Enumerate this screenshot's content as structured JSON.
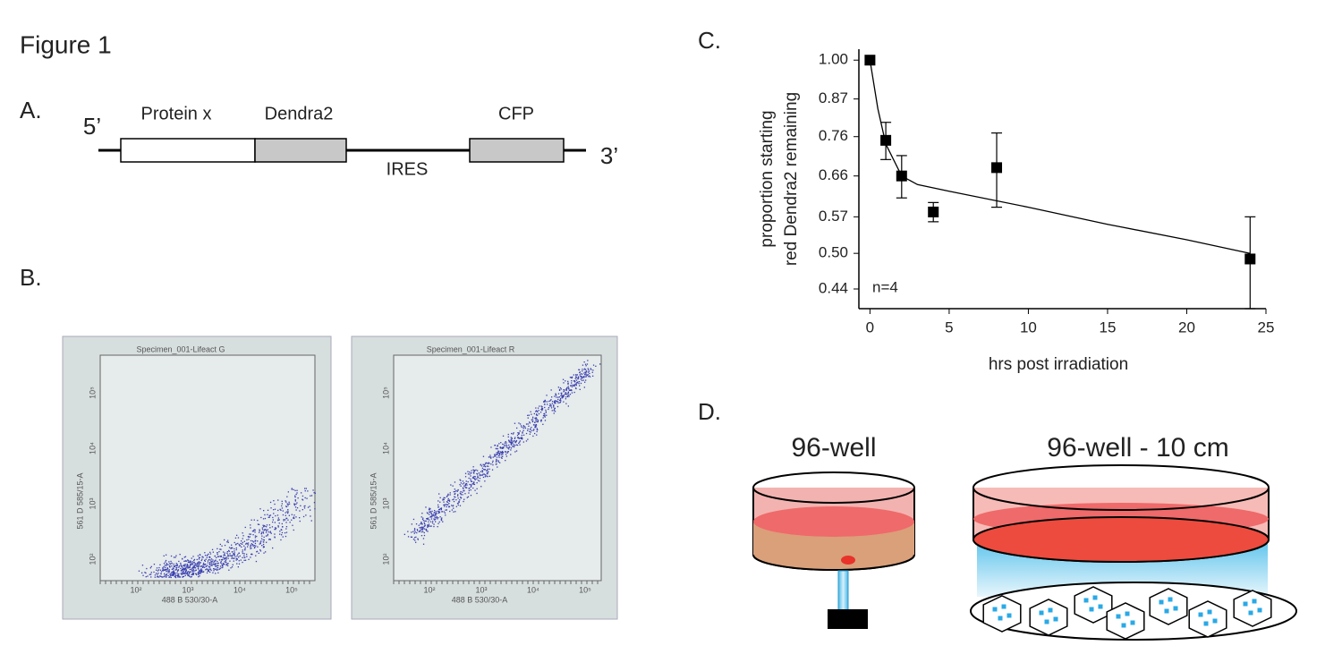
{
  "figure_title": "Figure 1",
  "panel_a": {
    "label": "A.",
    "five_prime": "5’",
    "three_prime": "3’",
    "segments": [
      "Protein x",
      "Dendra2",
      "CFP"
    ],
    "linker": "IRES"
  },
  "panel_b": {
    "label": "B.",
    "plots": [
      {
        "title": "Specimen_001-Lifeact G"
      },
      {
        "title": "Specimen_001-Lifeact R"
      }
    ],
    "y_label": "561 D 585/15-A",
    "x_label": "488 B 530/30-A",
    "ticks": [
      "10²",
      "10³",
      "10⁴",
      "10⁵"
    ]
  },
  "chart_data": {
    "type": "scatter",
    "label": "C.",
    "y_label": [
      "proportion starting",
      "red Dendra2 remaining"
    ],
    "x_label": "hrs post irradiation",
    "annotation": "n=4",
    "yscale": "log",
    "xlim": [
      -0.7,
      25
    ],
    "xticks": [
      0,
      5,
      10,
      15,
      20,
      25
    ],
    "ylim": [
      0.41,
      1.04
    ],
    "yticks": [
      {
        "value": 1,
        "label": "1.00"
      },
      0.87,
      0.76,
      0.66,
      0.57,
      {
        "value": 0.5,
        "label": "0.50"
      },
      0.44
    ],
    "series": [
      {
        "color": "#000000",
        "marker": "square",
        "x": [
          0,
          1,
          2,
          4,
          8,
          24
        ],
        "values": [
          1.0,
          0.75,
          0.66,
          0.58,
          0.68,
          0.49
        ],
        "errors": [
          0,
          0.05,
          0.05,
          0.02,
          0.09,
          0.08
        ]
      },
      {
        "color": "#000000",
        "marker": "none",
        "x": [
          0,
          0.5,
          1,
          2,
          3,
          5,
          10,
          15,
          20,
          24
        ],
        "values": [
          1.0,
          0.84,
          0.74,
          0.66,
          0.64,
          0.625,
          0.59,
          0.555,
          0.525,
          0.5
        ]
      }
    ]
  },
  "panel_d": {
    "label": "D.",
    "left_title": "96-well",
    "right_title": "96-well - 10 cm"
  }
}
